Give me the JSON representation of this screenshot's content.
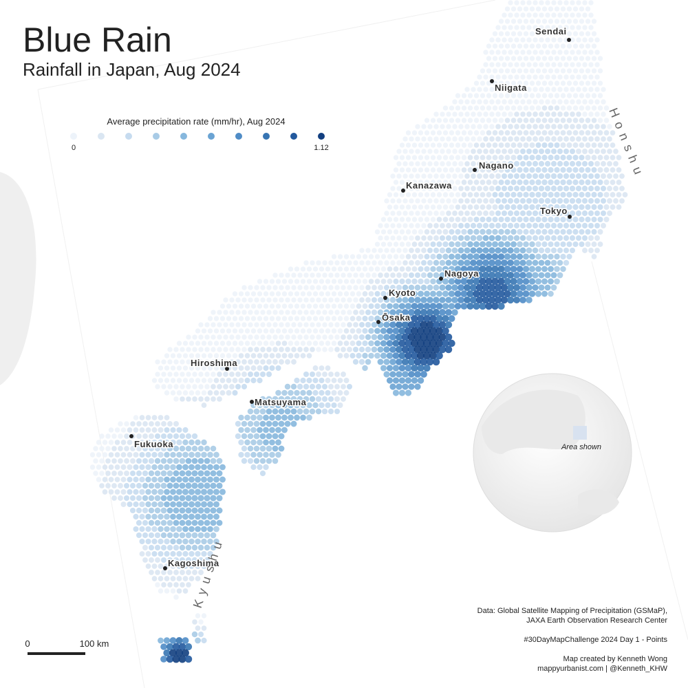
{
  "header": {
    "title": "Blue Rain",
    "subtitle": "Rainfall in Japan, Aug 2024"
  },
  "legend": {
    "title": "Average precipitation rate (mm/hr), Aug 2024",
    "min": 0,
    "max": 1.12,
    "colors": [
      "#edf3fa",
      "#dae6f2",
      "#c6dbef",
      "#a8cbe6",
      "#86b7dd",
      "#6aa3d3",
      "#4f8cc6",
      "#3775b3",
      "#22599d",
      "#123f80"
    ]
  },
  "cities": [
    "Sendai",
    "Niigata",
    "Nagano",
    "Kanazawa",
    "Tokyo",
    "Nagoya",
    "Kyoto",
    "Ōsaka",
    "Hiroshima",
    "Matsuyama",
    "Fukuoka",
    "Kagoshima"
  ],
  "regions": {
    "honshu": "Honshu",
    "kyushu": "Kyushu"
  },
  "globe": {
    "label": "Area shown"
  },
  "scale_bar": {
    "start": "0",
    "end": "100 km"
  },
  "credits": [
    "Data: Global Satellite Mapping of Precipitation (GSMaP),",
    "JAXA Earth Observation Research Center",
    "#30DayMapChallenge 2024 Day 1 - Points",
    "Map created by Kenneth Wong",
    "mappyurbanist.com | @Kenneth_KHW"
  ]
}
